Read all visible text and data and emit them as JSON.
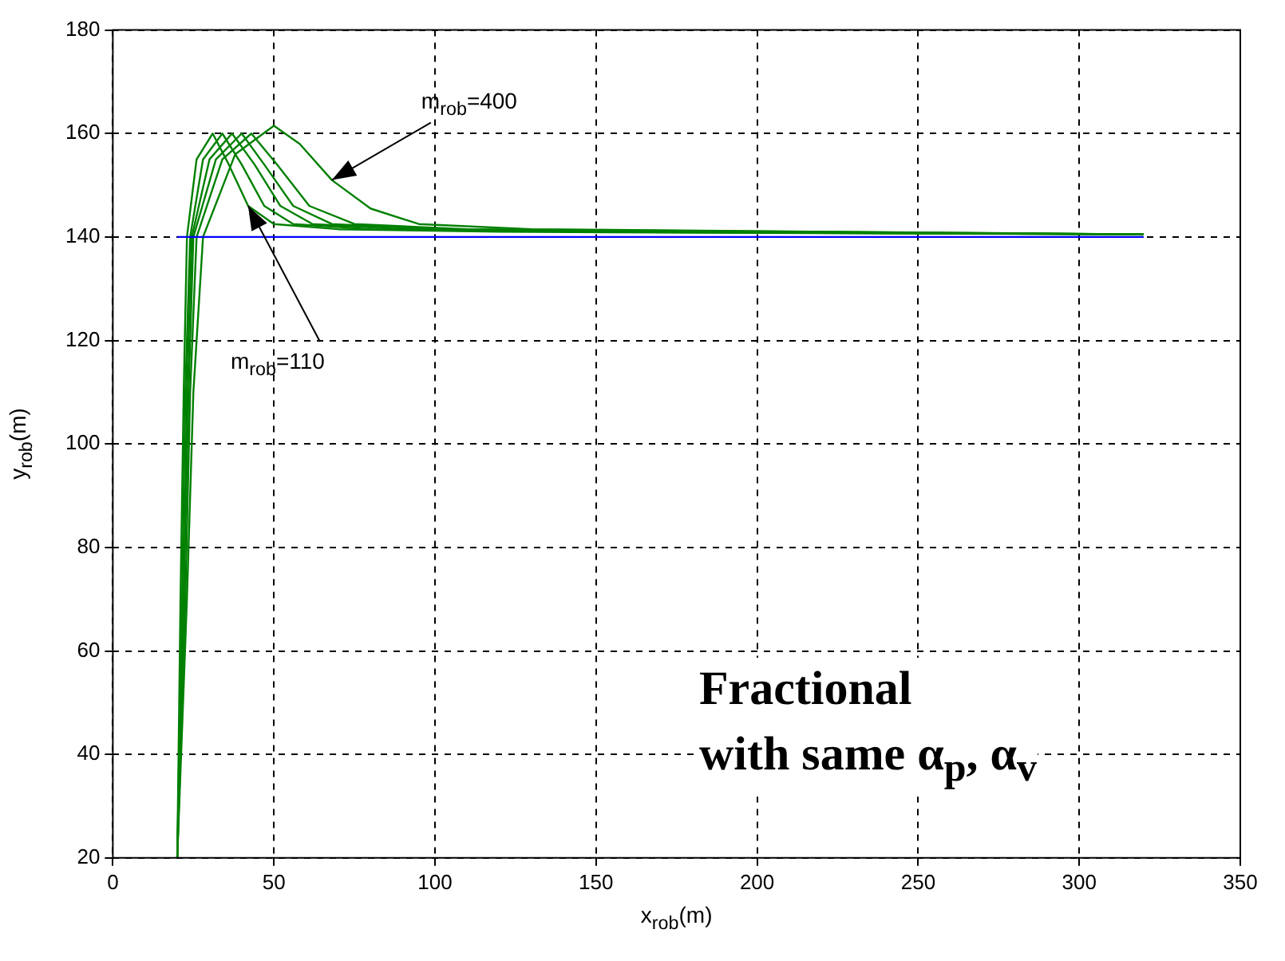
{
  "chart_data": {
    "type": "line",
    "xlabel": "x$_{rob}$(m)",
    "ylabel": "y$_{rob}$(m)",
    "xlim": [
      0,
      350
    ],
    "xticks": [
      0,
      50,
      100,
      150,
      200,
      250,
      300,
      350
    ],
    "ylim": [
      20,
      180
    ],
    "yticks": [
      20,
      40,
      60,
      80,
      100,
      120,
      140,
      160,
      180
    ],
    "grid": true,
    "legend": false,
    "marker": "none",
    "line_style": "solid",
    "series": [
      {
        "color": "#0000ff",
        "x": [
          20,
          320
        ],
        "values": [
          140,
          140
        ]
      },
      {
        "color": "#008000",
        "x": [
          20,
          21,
          22,
          23,
          26,
          31,
          36,
          42,
          50,
          70,
          120,
          320
        ],
        "values": [
          20,
          70,
          110,
          140,
          155,
          160,
          154,
          146,
          142.5,
          141.5,
          141,
          140.5
        ]
      },
      {
        "color": "#008000",
        "x": [
          20,
          21.5,
          22.5,
          24,
          28,
          34,
          40,
          47,
          56,
          80,
          150,
          320
        ],
        "values": [
          20,
          70,
          110,
          140,
          155,
          160,
          154,
          146,
          142.5,
          141.5,
          141,
          140.5
        ]
      },
      {
        "color": "#008000",
        "x": [
          20,
          22,
          23,
          24.5,
          30,
          37,
          44,
          52,
          62,
          90,
          170,
          320
        ],
        "values": [
          20,
          70,
          110,
          140,
          155,
          160,
          154,
          146,
          142.5,
          141.5,
          141,
          140.5
        ]
      },
      {
        "color": "#008000",
        "x": [
          20,
          22,
          23.5,
          25,
          32,
          40,
          47,
          56,
          68,
          100,
          200,
          320
        ],
        "values": [
          20,
          70,
          110,
          140,
          155,
          160,
          154,
          146,
          142.5,
          141.5,
          141,
          140.5
        ]
      },
      {
        "color": "#008000",
        "x": [
          20,
          22.5,
          24,
          26,
          34,
          43,
          51,
          61,
          75,
          110,
          220,
          320
        ],
        "values": [
          20,
          70,
          110,
          140,
          155,
          160,
          154,
          146,
          142.5,
          141.5,
          141,
          140.5
        ]
      },
      {
        "color": "#008000",
        "x": [
          20,
          23,
          25,
          28,
          38,
          50,
          58,
          68,
          80,
          95,
          130,
          320
        ],
        "values": [
          20,
          70,
          110,
          140,
          156,
          161.5,
          158,
          151,
          145.5,
          142.5,
          141.5,
          140.5
        ]
      }
    ],
    "annotations": [
      {
        "text": "m$_{rob}$=400",
        "x": 68,
        "y": 151
      },
      {
        "text": "m$_{rob}$=110",
        "x": 42,
        "y": 146
      },
      "Fractional\nwith same α$_{p}$, α$_{v}$"
    ]
  }
}
